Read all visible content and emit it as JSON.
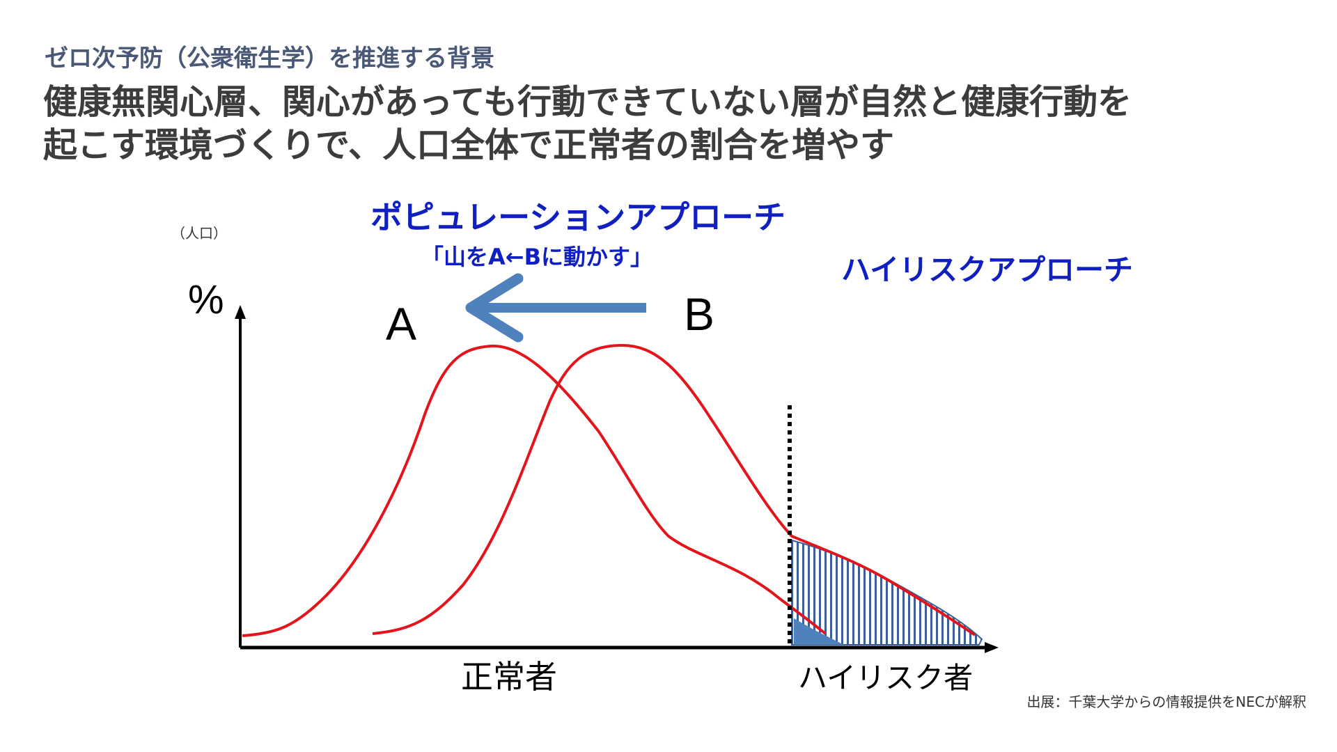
{
  "slide": {
    "kicker": "ゼロ次予防（公衆衛生学）を推進する背景",
    "headline_lines": [
      "健康無関心層、関心があっても行動できていない層が自然と健康行動を",
      "起こす環境づくりで、人口全体で正常者の割合を増やす"
    ],
    "source": "出展：千葉大学からの情報提供をNECが解釈"
  },
  "diagram": {
    "unit_note": "（人口）",
    "y_axis_symbol": "%",
    "population_approach_title": "ポピュレーションアプローチ",
    "population_approach_subtitle": "「山をA←Bに動かす」",
    "high_risk_approach_title": "ハイリスクアプローチ",
    "curve_a_label": "A",
    "curve_b_label": "B",
    "x_label_normal": "正常者",
    "x_label_high_risk": "ハイリスク者",
    "colors": {
      "curve": "#e3141b",
      "arrow": "#4f81bd",
      "approach_text": "#1020c0",
      "hatch": "#3a5f95",
      "hatch_fill": "#4f81bd",
      "axis": "#000000"
    }
  }
}
